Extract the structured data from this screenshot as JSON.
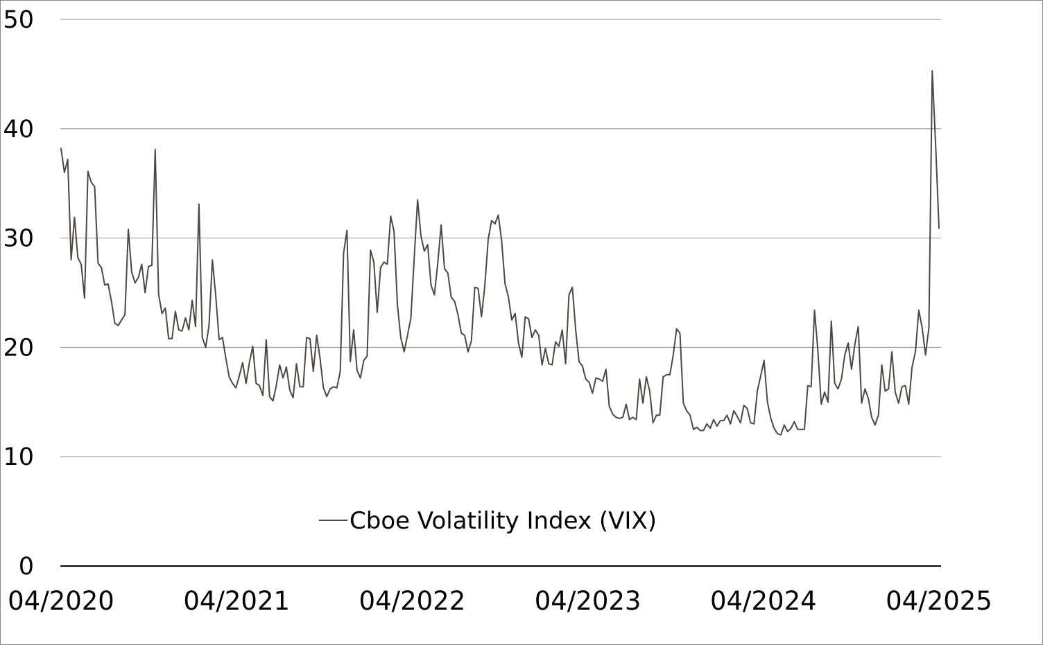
{
  "chart_data": {
    "type": "line",
    "title": "",
    "xlabel": "",
    "ylabel": "",
    "ylim": [
      0,
      50
    ],
    "yticks": [
      0,
      10,
      20,
      30,
      40,
      50
    ],
    "xlim": [
      "2020-04",
      "2025-04"
    ],
    "xticks": [
      "04/2020",
      "04/2021",
      "04/2022",
      "04/2023",
      "04/2024",
      "04/2025"
    ],
    "grid": "horizontal",
    "legend": {
      "position": "bottom-center",
      "entries": [
        "Cboe Volatility Index (VIX)"
      ]
    },
    "series": [
      {
        "name": "Cboe Volatility Index (VIX)",
        "color": "#4d4740",
        "values": [
          38.2,
          36.0,
          37.2,
          28.0,
          31.9,
          28.2,
          27.6,
          24.5,
          36.1,
          35.1,
          34.7,
          27.7,
          27.3,
          25.7,
          25.8,
          24.2,
          22.2,
          22.0,
          22.5,
          23.0,
          30.8,
          26.9,
          25.9,
          26.4,
          27.6,
          25.0,
          27.4,
          27.5,
          38.1,
          24.9,
          23.1,
          23.6,
          20.8,
          20.8,
          23.3,
          21.6,
          21.5,
          22.7,
          21.6,
          24.3,
          21.9,
          33.1,
          20.9,
          20.0,
          22.0,
          28.0,
          24.7,
          20.7,
          20.9,
          19.0,
          17.3,
          16.7,
          16.3,
          17.4,
          18.6,
          16.7,
          18.6,
          20.1,
          16.7,
          16.5,
          15.6,
          20.7,
          15.5,
          15.1,
          16.5,
          18.4,
          17.2,
          18.2,
          16.1,
          15.4,
          18.5,
          16.4,
          16.4,
          20.9,
          20.8,
          17.8,
          21.1,
          19.0,
          16.3,
          15.5,
          16.2,
          16.4,
          16.3,
          17.8,
          28.6,
          30.7,
          18.7,
          21.6,
          17.9,
          17.2,
          18.8,
          19.2,
          28.9,
          27.8,
          23.2,
          27.3,
          27.8,
          27.6,
          32.0,
          30.6,
          23.9,
          20.9,
          19.6,
          21.1,
          22.7,
          28.2,
          33.5,
          30.2,
          28.8,
          29.4,
          25.7,
          24.8,
          27.7,
          31.2,
          27.2,
          26.8,
          24.6,
          24.2,
          23.0,
          21.3,
          21.1,
          19.6,
          20.6,
          25.5,
          25.4,
          22.8,
          25.7,
          29.9,
          31.6,
          31.3,
          32.1,
          29.7,
          25.8,
          24.6,
          22.5,
          23.1,
          20.4,
          19.1,
          22.8,
          22.6,
          20.9,
          21.6,
          21.1,
          18.4,
          19.9,
          18.5,
          18.4,
          20.5,
          20.1,
          21.6,
          18.5,
          24.8,
          25.5,
          21.6,
          18.7,
          18.3,
          17.1,
          16.8,
          15.8,
          17.2,
          17.1,
          16.9,
          18.0,
          14.6,
          13.9,
          13.6,
          13.5,
          13.6,
          14.8,
          13.4,
          13.6,
          13.4,
          17.1,
          14.9,
          17.3,
          16.0,
          13.1,
          13.8,
          13.8,
          17.3,
          17.5,
          17.5,
          19.3,
          21.7,
          21.3,
          14.9,
          14.2,
          13.8,
          12.5,
          12.7,
          12.4,
          12.4,
          13.0,
          12.6,
          13.4,
          12.8,
          13.3,
          13.3,
          13.8,
          13.0,
          14.2,
          13.7,
          13.1,
          14.7,
          14.4,
          13.1,
          13.0,
          16.0,
          17.4,
          18.8,
          15.0,
          13.5,
          12.6,
          12.1,
          12.0,
          12.9,
          12.3,
          12.6,
          13.2,
          12.5,
          12.5,
          12.5,
          16.5,
          16.4,
          23.4,
          19.7,
          14.8,
          15.9,
          15.0,
          22.4,
          16.7,
          16.2,
          17.1,
          19.3,
          20.4,
          18.0,
          20.3,
          21.9,
          14.9,
          16.2,
          15.3,
          13.6,
          12.9,
          13.8,
          18.4,
          16.0,
          16.2,
          19.6,
          15.9,
          14.9,
          16.4,
          16.5,
          14.8,
          18.2,
          19.6,
          23.4,
          21.8,
          19.3,
          21.8,
          45.3,
          38.6,
          30.9
        ]
      }
    ]
  }
}
